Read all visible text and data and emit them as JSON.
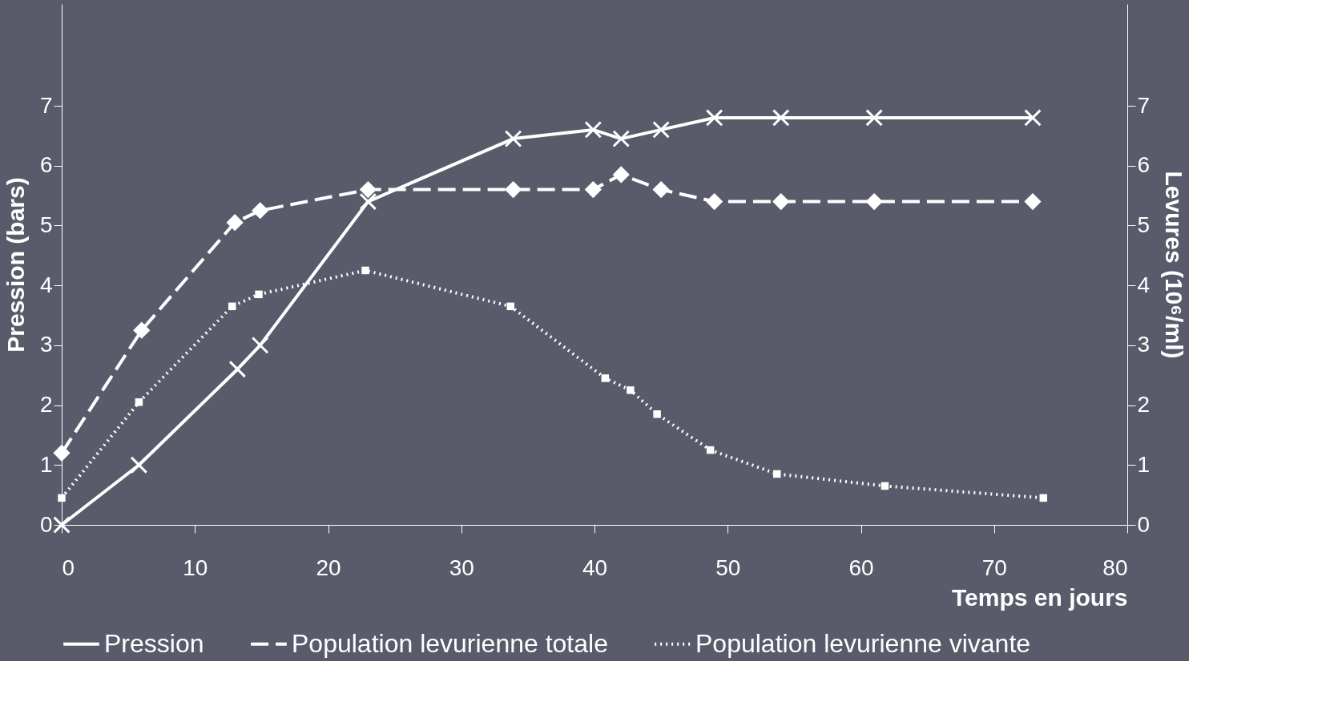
{
  "chart_data": {
    "type": "line",
    "xlabel": "Temps en jours",
    "ylabel": "Pression (bars)",
    "y2label": "Levures (10⁶/ml)",
    "xlim": [
      0,
      80
    ],
    "xticks": [
      0,
      10,
      20,
      30,
      40,
      50,
      60,
      70,
      80
    ],
    "ylim": [
      0,
      8.7
    ],
    "yticks": [
      0,
      1,
      2,
      3,
      4,
      5,
      6,
      7
    ],
    "y2lim": [
      0,
      8.7
    ],
    "y2ticks": [
      0,
      1,
      2,
      3,
      4,
      5,
      6,
      7
    ],
    "legend": "bottom",
    "series": [
      {
        "name": "Pression",
        "color": "#ffffff",
        "marker": "cross",
        "line_style": "solid",
        "x": [
          0,
          5.8,
          13.2,
          14.9,
          23,
          33.9,
          39.9,
          42,
          45,
          49,
          54,
          61,
          72.9
        ],
        "values": [
          0.0,
          1.0,
          2.6,
          3.0,
          5.4,
          6.45,
          6.6,
          6.45,
          6.6,
          6.8,
          6.8,
          6.8,
          6.8
        ]
      },
      {
        "name": "Population levurienne totale",
        "color": "#ffffff",
        "marker": "diamond",
        "line_style": "dashed",
        "axis": "y2",
        "x": [
          0,
          6,
          13,
          14.9,
          23,
          33.9,
          39.9,
          42,
          45,
          49,
          54,
          61,
          72.9
        ],
        "values": [
          1.2,
          3.25,
          5.05,
          5.25,
          5.6,
          5.6,
          5.6,
          5.85,
          5.6,
          5.4,
          5.4,
          5.4,
          5.4
        ]
      },
      {
        "name": "Population levurienne vivante",
        "color": "#ffffff",
        "marker": "square",
        "line_style": "dotted",
        "axis": "y2",
        "x": [
          0,
          5.8,
          12.8,
          14.8,
          22.8,
          33.7,
          40.8,
          42.7,
          44.7,
          48.7,
          53.7,
          61.8,
          73.7
        ],
        "values": [
          0.45,
          2.05,
          3.65,
          3.85,
          4.25,
          3.65,
          2.45,
          2.25,
          1.85,
          1.25,
          0.85,
          0.65,
          0.45
        ]
      }
    ]
  }
}
